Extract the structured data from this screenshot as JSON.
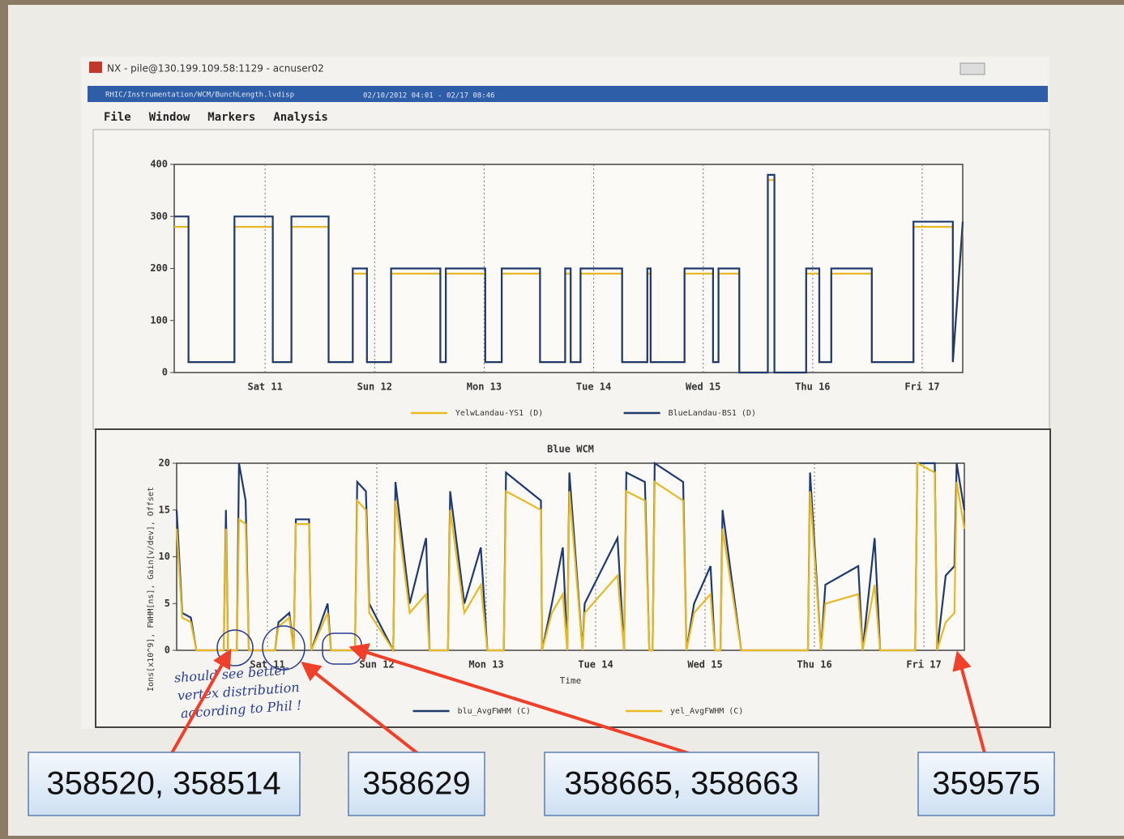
{
  "window": {
    "title": "NX - pile@130.199.109.58:1129 - acnuser02",
    "doc_path": "RHIC/Instrumentation/WCM/BunchLength.lvdisp",
    "time_range": "02/10/2012 04:01 - 02/17 08:46",
    "menu": [
      "File",
      "Window",
      "Markers",
      "Analysis"
    ]
  },
  "annotations": {
    "labels": [
      "358520, 358514",
      "358629",
      "358665, 358663",
      "359575"
    ],
    "handwriting": [
      "should see better",
      "vertex distribution",
      "according to Phil !"
    ]
  },
  "chart_data": [
    {
      "type": "line",
      "x": [
        0.17,
        0.3,
        0.3,
        0.72,
        0.72,
        1.07,
        1.07,
        1.24,
        1.24,
        1.58,
        1.58,
        1.8,
        1.8,
        1.93,
        1.93,
        2.15,
        2.15,
        2.6,
        2.6,
        2.65,
        2.65,
        3.01,
        3.01,
        3.16,
        3.16,
        3.51,
        3.51,
        3.74,
        3.74,
        3.79,
        3.79,
        3.88,
        3.88,
        4.26,
        4.26,
        4.49,
        4.49,
        4.52,
        4.52,
        4.83,
        4.83,
        5.09,
        5.09,
        5.14,
        5.14,
        5.33,
        5.33,
        5.59,
        5.59,
        5.65,
        5.65,
        5.94,
        5.94,
        6.06,
        6.06,
        6.17,
        6.17,
        6.54,
        6.54,
        6.92,
        6.92,
        7.28,
        7.28,
        7.37
      ],
      "series": [
        {
          "name": "YelwLandau-YS1 (D)",
          "color": "#e8b923",
          "values": [
            280,
            280,
            20,
            20,
            280,
            280,
            20,
            20,
            280,
            280,
            20,
            20,
            190,
            190,
            20,
            20,
            190,
            190,
            20,
            20,
            190,
            190,
            20,
            20,
            190,
            190,
            20,
            20,
            190,
            190,
            20,
            20,
            190,
            190,
            20,
            20,
            190,
            190,
            20,
            20,
            190,
            190,
            20,
            20,
            190,
            190,
            0,
            0,
            370,
            370,
            0,
            0,
            190,
            190,
            20,
            20,
            190,
            190,
            20,
            20,
            280,
            280,
            20,
            280
          ]
        },
        {
          "name": "BlueLandau-BS1 (D)",
          "color": "#1f3a6e",
          "values": [
            300,
            300,
            20,
            20,
            300,
            300,
            20,
            20,
            300,
            300,
            20,
            20,
            200,
            200,
            20,
            20,
            200,
            200,
            20,
            20,
            200,
            200,
            20,
            20,
            200,
            200,
            20,
            20,
            200,
            200,
            20,
            20,
            200,
            200,
            20,
            20,
            200,
            200,
            20,
            20,
            200,
            200,
            20,
            20,
            200,
            200,
            0,
            0,
            380,
            380,
            0,
            0,
            200,
            200,
            20,
            20,
            200,
            200,
            20,
            20,
            290,
            290,
            20,
            290
          ]
        }
      ],
      "xlim": [
        0.17,
        7.37
      ],
      "xticks": [
        {
          "value": 1,
          "label": "Sat 11"
        },
        {
          "value": 2,
          "label": "Sun 12"
        },
        {
          "value": 3,
          "label": "Mon 13"
        },
        {
          "value": 4,
          "label": "Tue 14"
        },
        {
          "value": 5,
          "label": "Wed 15"
        },
        {
          "value": 6,
          "label": "Thu 16"
        },
        {
          "value": 7,
          "label": "Fri 17"
        }
      ],
      "ylim": [
        0,
        400
      ],
      "yticks": [
        0,
        100,
        200,
        300,
        400
      ],
      "xgrid": true
    },
    {
      "type": "line",
      "title": "Blue WCM",
      "xlabel": "Time",
      "ylabel": "Ions[x10^9], FWHM[ns], Gain[v/dev], Offset",
      "x": [
        0.17,
        0.22,
        0.3,
        0.35,
        0.6,
        0.62,
        0.64,
        0.72,
        0.74,
        0.8,
        0.83,
        1.07,
        1.1,
        1.2,
        1.24,
        1.26,
        1.38,
        1.4,
        1.55,
        1.58,
        1.8,
        1.82,
        1.9,
        1.93,
        2.15,
        2.17,
        2.3,
        2.45,
        2.48,
        2.65,
        2.67,
        2.8,
        2.95,
        3.01,
        3.16,
        3.18,
        3.5,
        3.51,
        3.6,
        3.7,
        3.74,
        3.76,
        3.88,
        3.9,
        4.2,
        4.26,
        4.28,
        4.45,
        4.49,
        4.52,
        4.54,
        4.8,
        4.83,
        4.9,
        5.05,
        5.09,
        5.14,
        5.16,
        5.33,
        5.94,
        5.96,
        6.06,
        6.1,
        6.4,
        6.44,
        6.55,
        6.6,
        6.92,
        6.94,
        7.1,
        7.12,
        7.2,
        7.28,
        7.3,
        7.37
      ],
      "series": [
        {
          "name": "blu_AvgFWHM (C)",
          "color": "#1f3a6e",
          "values": [
            15,
            4,
            3.5,
            0,
            0,
            15,
            0,
            0,
            20,
            16,
            0,
            0,
            3,
            4,
            0,
            14,
            14,
            0,
            5,
            0,
            0,
            18,
            17,
            5,
            0,
            18,
            5,
            12,
            0,
            0,
            17,
            5,
            11,
            0,
            0,
            19,
            16,
            0,
            5,
            11,
            0,
            19,
            0,
            5,
            12,
            0,
            19,
            18,
            0,
            0,
            20,
            18,
            0,
            5,
            9,
            0,
            0,
            15,
            0,
            0,
            19,
            0,
            7,
            9,
            0,
            12,
            0,
            0,
            20,
            20,
            0,
            8,
            9,
            20,
            15
          ]
        },
        {
          "name": "yel_AvgFWHM (C)",
          "color": "#e8b923",
          "values": [
            13,
            3.5,
            3,
            0,
            0,
            13,
            0,
            0,
            14,
            13.5,
            0,
            0,
            2.5,
            3.5,
            0,
            13.5,
            13.5,
            0,
            4,
            0,
            0,
            16,
            15,
            4,
            0,
            16,
            4,
            6,
            0,
            0,
            15,
            4,
            7,
            0,
            0,
            17,
            15,
            0,
            4,
            6,
            0,
            17,
            0,
            4,
            8,
            0,
            17,
            16,
            0,
            0,
            18,
            16,
            0,
            4,
            6,
            0,
            0,
            13,
            0,
            0,
            17,
            0,
            5,
            6,
            0,
            7,
            0,
            0,
            20,
            19,
            0,
            3,
            4,
            18,
            13
          ]
        }
      ],
      "xlim": [
        0.17,
        7.37
      ],
      "xticks": [
        {
          "value": 1,
          "label": "Sat 11"
        },
        {
          "value": 2,
          "label": "Sun 12"
        },
        {
          "value": 3,
          "label": "Mon 13"
        },
        {
          "value": 4,
          "label": "Tue 14"
        },
        {
          "value": 5,
          "label": "Wed 15"
        },
        {
          "value": 6,
          "label": "Thu 16"
        },
        {
          "value": 7,
          "label": "Fri 17"
        }
      ],
      "ylim": [
        0,
        20
      ],
      "yticks": [
        0,
        5,
        10,
        15,
        20
      ],
      "xgrid": true
    }
  ]
}
